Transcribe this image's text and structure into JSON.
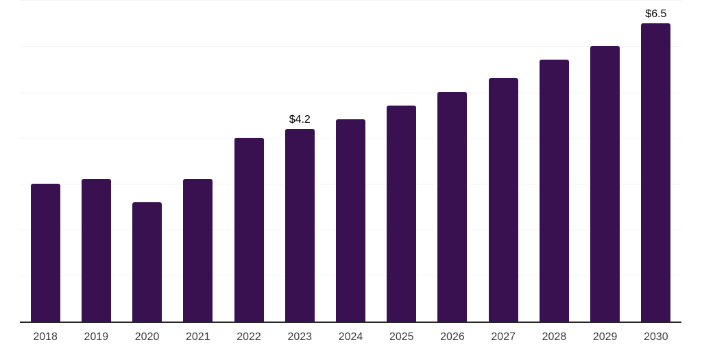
{
  "chart_data": {
    "type": "bar",
    "title": "",
    "xlabel": "",
    "ylabel": "",
    "categories": [
      "2018",
      "2019",
      "2020",
      "2021",
      "2022",
      "2023",
      "2024",
      "2025",
      "2026",
      "2027",
      "2028",
      "2029",
      "2030"
    ],
    "values": [
      3.0,
      3.1,
      2.6,
      3.1,
      4.0,
      4.2,
      4.4,
      4.7,
      5.0,
      5.3,
      5.7,
      6.0,
      6.5
    ],
    "data_labels": [
      "",
      "",
      "",
      "",
      "",
      "$4.2",
      "",
      "",
      "",
      "",
      "",
      "",
      "$6.5"
    ],
    "ylim": [
      0,
      7
    ],
    "grid_step": 1,
    "grid": "horizontal-only",
    "legend": "none",
    "y_axis_labels": "none",
    "bar_color": "#391150",
    "gridline_color": "#f2f2f2",
    "axis_line_color": "#262626",
    "tick_label_color": "#3d3d3d",
    "data_label_color": "#000000",
    "background_color": "#ffffff"
  }
}
